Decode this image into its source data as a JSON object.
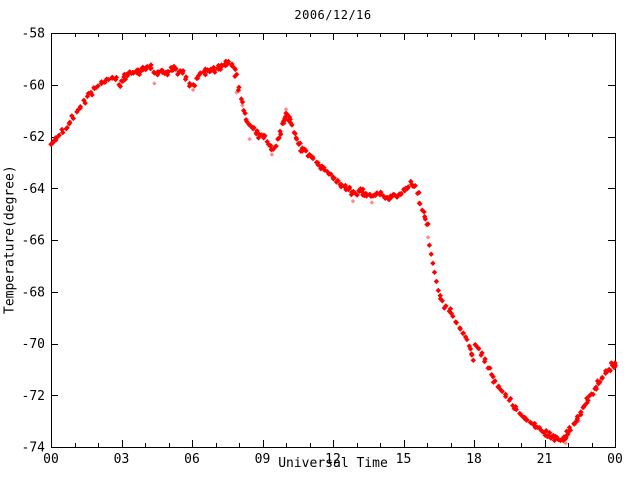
{
  "title": "2006/12/16",
  "colors": {
    "background": "#ffffff",
    "frame": "#000000",
    "marker": "#ff0000"
  },
  "chart_data": {
    "type": "scatter",
    "title": "2006/12/16",
    "xlabel": "Universal Time",
    "ylabel": "Temperature(degree)",
    "xlim": [
      0,
      24
    ],
    "ylim": [
      -74,
      -58
    ],
    "grid": false,
    "legend": null,
    "marker": {
      "shape": "diamond",
      "color": "#ff0000"
    },
    "x_ticks": {
      "major_hours": [
        0,
        3,
        6,
        9,
        12,
        15,
        18,
        21,
        24
      ],
      "minor_interval_hours": 1,
      "labels": [
        "00",
        "03",
        "06",
        "09",
        "12",
        "15",
        "18",
        "21",
        "00"
      ]
    },
    "y_ticks": {
      "values": [
        -58,
        -60,
        -62,
        -64,
        -66,
        -68,
        -70,
        -72,
        -74
      ],
      "labels": [
        "-58",
        "-60",
        "-62",
        "-64",
        "-66",
        "-68",
        "-70",
        "-72",
        "-74"
      ]
    },
    "series_trace": [
      [
        0.0,
        -62.3,
        3
      ],
      [
        0.1,
        -62.2,
        2
      ],
      [
        0.2,
        -62.05,
        2
      ],
      [
        0.35,
        -61.95,
        2
      ],
      [
        0.5,
        -61.85,
        2
      ],
      [
        0.65,
        -61.7,
        2
      ],
      [
        0.8,
        -61.45,
        2
      ],
      [
        0.95,
        -61.3,
        2
      ],
      [
        1.1,
        -61.05,
        2
      ],
      [
        1.25,
        -60.85,
        2
      ],
      [
        1.4,
        -60.6,
        2
      ],
      [
        1.55,
        -60.45,
        2
      ],
      [
        1.7,
        -60.3,
        2
      ],
      [
        1.85,
        -60.15,
        2
      ],
      [
        2.0,
        -60.05,
        2
      ],
      [
        2.15,
        -59.95,
        2
      ],
      [
        2.3,
        -59.9,
        2
      ],
      [
        2.45,
        -59.8,
        2
      ],
      [
        2.6,
        -59.75,
        2
      ],
      [
        2.75,
        -59.8,
        2
      ],
      [
        2.9,
        -60.0,
        2
      ],
      [
        3.0,
        -59.85,
        2
      ],
      [
        3.1,
        -59.7,
        2
      ],
      [
        3.2,
        -59.6,
        3
      ],
      [
        3.35,
        -59.5,
        3
      ],
      [
        3.5,
        -59.55,
        3
      ],
      [
        3.65,
        -59.45,
        3
      ],
      [
        3.8,
        -59.5,
        3
      ],
      [
        3.95,
        -59.4,
        3
      ],
      [
        4.1,
        -59.3,
        3
      ],
      [
        4.25,
        -59.35,
        3
      ],
      [
        4.4,
        -59.55,
        2
      ],
      [
        4.55,
        -59.5,
        3
      ],
      [
        4.7,
        -59.45,
        3
      ],
      [
        4.85,
        -59.55,
        3
      ],
      [
        5.0,
        -59.5,
        3
      ],
      [
        5.15,
        -59.45,
        3
      ],
      [
        5.3,
        -59.4,
        3
      ],
      [
        5.45,
        -59.5,
        3
      ],
      [
        5.6,
        -59.55,
        3
      ],
      [
        5.75,
        -59.7,
        2
      ],
      [
        5.9,
        -59.95,
        2
      ],
      [
        6.05,
        -60.0,
        2
      ],
      [
        6.2,
        -59.75,
        2
      ],
      [
        6.35,
        -59.55,
        3
      ],
      [
        6.5,
        -59.5,
        3
      ],
      [
        6.65,
        -59.45,
        3
      ],
      [
        6.8,
        -59.4,
        3
      ],
      [
        6.95,
        -59.45,
        3
      ],
      [
        7.1,
        -59.35,
        3
      ],
      [
        7.25,
        -59.3,
        3
      ],
      [
        7.4,
        -59.2,
        3
      ],
      [
        7.55,
        -59.1,
        3
      ],
      [
        7.7,
        -59.2,
        2
      ],
      [
        7.8,
        -59.35,
        2
      ],
      [
        7.9,
        -59.6,
        2
      ],
      [
        8.0,
        -60.1,
        2
      ],
      [
        8.1,
        -60.55,
        2
      ],
      [
        8.2,
        -61.0,
        2
      ],
      [
        8.3,
        -61.35,
        2
      ],
      [
        8.45,
        -61.55,
        3
      ],
      [
        8.6,
        -61.7,
        3
      ],
      [
        8.75,
        -61.85,
        4
      ],
      [
        8.9,
        -61.95,
        3
      ],
      [
        9.05,
        -62.05,
        3
      ],
      [
        9.2,
        -62.2,
        2
      ],
      [
        9.35,
        -62.35,
        2
      ],
      [
        9.45,
        -62.5,
        2
      ],
      [
        9.55,
        -62.4,
        2
      ],
      [
        9.65,
        -62.1,
        2
      ],
      [
        9.75,
        -61.8,
        2
      ],
      [
        9.85,
        -61.5,
        2
      ],
      [
        9.95,
        -61.3,
        3
      ],
      [
        10.05,
        -61.15,
        3
      ],
      [
        10.15,
        -61.25,
        3
      ],
      [
        10.25,
        -61.55,
        2
      ],
      [
        10.35,
        -61.85,
        2
      ],
      [
        10.45,
        -62.1,
        2
      ],
      [
        10.55,
        -62.3,
        3
      ],
      [
        10.7,
        -62.45,
        3
      ],
      [
        10.85,
        -62.55,
        3
      ],
      [
        11.0,
        -62.7,
        3
      ],
      [
        11.15,
        -62.85,
        3
      ],
      [
        11.3,
        -63.0,
        3
      ],
      [
        11.45,
        -63.15,
        3
      ],
      [
        11.6,
        -63.25,
        3
      ],
      [
        11.75,
        -63.35,
        2
      ],
      [
        11.9,
        -63.45,
        2
      ],
      [
        12.05,
        -63.6,
        3
      ],
      [
        12.2,
        -63.7,
        3
      ],
      [
        12.35,
        -63.85,
        3
      ],
      [
        12.5,
        -63.95,
        3
      ],
      [
        12.65,
        -64.05,
        3
      ],
      [
        12.8,
        -64.15,
        3
      ],
      [
        12.95,
        -64.2,
        2
      ],
      [
        13.1,
        -64.1,
        3
      ],
      [
        13.25,
        -64.15,
        3
      ],
      [
        13.4,
        -64.2,
        3
      ],
      [
        13.55,
        -64.25,
        3
      ],
      [
        13.7,
        -64.3,
        2
      ],
      [
        13.85,
        -64.2,
        3
      ],
      [
        14.0,
        -64.25,
        3
      ],
      [
        14.15,
        -64.3,
        3
      ],
      [
        14.3,
        -64.35,
        2
      ],
      [
        14.45,
        -64.3,
        3
      ],
      [
        14.6,
        -64.25,
        3
      ],
      [
        14.75,
        -64.3,
        2
      ],
      [
        14.9,
        -64.2,
        3
      ],
      [
        15.05,
        -64.1,
        3
      ],
      [
        15.2,
        -63.95,
        3
      ],
      [
        15.35,
        -63.85,
        3
      ],
      [
        15.5,
        -63.9,
        2
      ],
      [
        15.6,
        -64.2,
        2
      ],
      [
        15.7,
        -64.6,
        2
      ],
      [
        15.8,
        -64.85,
        2
      ],
      [
        15.9,
        -65.1,
        2
      ],
      [
        16.0,
        -65.4,
        2
      ],
      [
        16.1,
        -66.2,
        1
      ],
      [
        16.18,
        -66.55,
        1
      ],
      [
        16.25,
        -66.9,
        1
      ],
      [
        16.32,
        -67.25,
        1
      ],
      [
        16.4,
        -67.6,
        1
      ],
      [
        16.48,
        -67.95,
        1
      ],
      [
        16.56,
        -68.15,
        1
      ],
      [
        16.65,
        -68.35,
        2
      ],
      [
        16.8,
        -68.55,
        2
      ],
      [
        16.95,
        -68.75,
        2
      ],
      [
        17.1,
        -68.95,
        2
      ],
      [
        17.25,
        -69.2,
        2
      ],
      [
        17.4,
        -69.4,
        2
      ],
      [
        17.55,
        -69.6,
        2
      ],
      [
        17.7,
        -69.85,
        2
      ],
      [
        17.8,
        -70.1,
        2
      ],
      [
        17.9,
        -70.4,
        2
      ],
      [
        17.97,
        -70.65,
        1
      ],
      [
        18.1,
        -70.1,
        2
      ],
      [
        18.2,
        -70.2,
        2
      ],
      [
        18.3,
        -70.45,
        2
      ],
      [
        18.45,
        -70.7,
        2
      ],
      [
        18.6,
        -70.95,
        2
      ],
      [
        18.75,
        -71.2,
        2
      ],
      [
        18.9,
        -71.45,
        2
      ],
      [
        19.05,
        -71.65,
        2
      ],
      [
        19.2,
        -71.85,
        2
      ],
      [
        19.35,
        -72.05,
        2
      ],
      [
        19.5,
        -72.2,
        2
      ],
      [
        19.65,
        -72.4,
        2
      ],
      [
        19.8,
        -72.55,
        2
      ],
      [
        19.95,
        -72.7,
        2
      ],
      [
        20.1,
        -72.85,
        2
      ],
      [
        20.25,
        -72.95,
        3
      ],
      [
        20.4,
        -73.05,
        2
      ],
      [
        20.55,
        -73.15,
        3
      ],
      [
        20.7,
        -73.25,
        2
      ],
      [
        20.85,
        -73.35,
        3
      ],
      [
        21.0,
        -73.45,
        3
      ],
      [
        21.15,
        -73.55,
        3
      ],
      [
        21.3,
        -73.6,
        3
      ],
      [
        21.45,
        -73.65,
        3
      ],
      [
        21.6,
        -73.72,
        3
      ],
      [
        21.75,
        -73.7,
        3
      ],
      [
        21.9,
        -73.6,
        3
      ],
      [
        22.0,
        -73.5,
        2
      ],
      [
        22.1,
        -73.35,
        3
      ],
      [
        22.25,
        -73.1,
        3
      ],
      [
        22.4,
        -72.9,
        3
      ],
      [
        22.55,
        -72.65,
        3
      ],
      [
        22.7,
        -72.4,
        3
      ],
      [
        22.85,
        -72.2,
        3
      ],
      [
        23.0,
        -71.95,
        3
      ],
      [
        23.15,
        -71.75,
        3
      ],
      [
        23.3,
        -71.55,
        3
      ],
      [
        23.45,
        -71.35,
        2
      ],
      [
        23.6,
        -71.15,
        3
      ],
      [
        23.75,
        -71.0,
        3
      ],
      [
        23.9,
        -70.85,
        3
      ],
      [
        24.0,
        -70.75,
        3
      ]
    ],
    "outlier_points": [
      [
        4.4,
        -59.95
      ],
      [
        6.05,
        -60.2
      ],
      [
        7.9,
        -60.3
      ],
      [
        8.15,
        -60.8
      ],
      [
        8.45,
        -62.1
      ],
      [
        9.4,
        -62.7
      ],
      [
        9.8,
        -61.9
      ],
      [
        10.0,
        -60.95
      ],
      [
        12.85,
        -64.5
      ],
      [
        13.65,
        -64.55
      ],
      [
        16.05,
        -65.9
      ],
      [
        21.9,
        -73.85
      ],
      [
        22.45,
        -73.0
      ]
    ]
  }
}
